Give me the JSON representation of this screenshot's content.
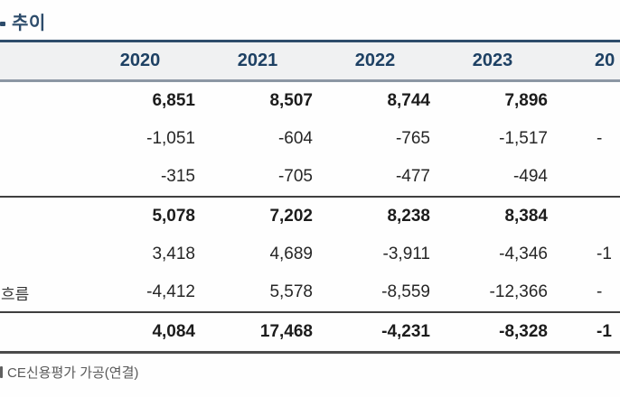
{
  "title": {
    "text": "추이"
  },
  "table": {
    "header": {
      "label": "",
      "years": [
        "2020",
        "2021",
        "2022",
        "2023",
        "20"
      ]
    },
    "rows": [
      {
        "label": "",
        "values": [
          "6,851",
          "8,507",
          "8,744",
          "7,896",
          ""
        ]
      },
      {
        "label": "",
        "values": [
          "-1,051",
          "-604",
          "-765",
          "-1,517",
          "-"
        ]
      },
      {
        "label": "",
        "values": [
          "-315",
          "-705",
          "-477",
          "-494",
          ""
        ]
      },
      {
        "label": "",
        "values": [
          "5,078",
          "7,202",
          "8,238",
          "8,384",
          ""
        ]
      },
      {
        "label": "",
        "values": [
          "3,418",
          "4,689",
          "-3,911",
          "-4,346",
          "-1"
        ]
      },
      {
        "label": "흐름",
        "values": [
          "-4,412",
          "5,578",
          "-8,559",
          "-12,366",
          "-"
        ]
      },
      {
        "label": "",
        "values": [
          "4,084",
          "17,468",
          "-4,231",
          "-8,328",
          "-1"
        ]
      }
    ]
  },
  "footer": {
    "text": "CE신용평가 가공(연결)"
  },
  "colors": {
    "accent_navy": "#2E4D6B",
    "year_text": "#1E4164",
    "header_bg": "#F0F1F2",
    "header_rule": "#8C97A4",
    "row_rule": "#3F3F3F",
    "number_text": "#262626",
    "footer_text": "#595959"
  }
}
